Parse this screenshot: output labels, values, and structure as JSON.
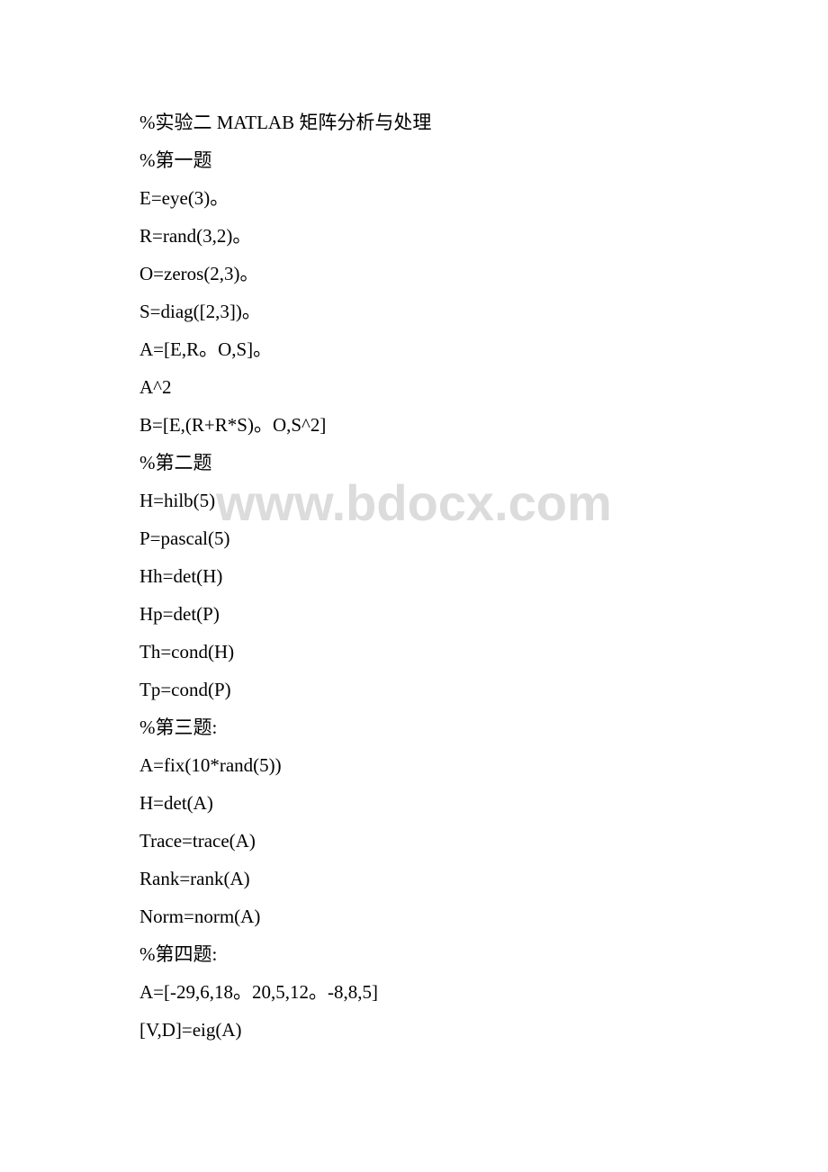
{
  "watermark": "www.bdocx.com",
  "lines": [
    "%实验二 MATLAB 矩阵分析与处理",
    "%第一题",
    "E=eye(3)。",
    "R=rand(3,2)。",
    "O=zeros(2,3)。",
    "S=diag([2,3])。",
    "A=[E,R。O,S]。",
    "A^2",
    "B=[E,(R+R*S)。O,S^2]",
    "%第二题",
    "H=hilb(5)",
    "P=pascal(5)",
    "Hh=det(H)",
    "Hp=det(P)",
    "Th=cond(H)",
    "Tp=cond(P)",
    "%第三题:",
    "A=fix(10*rand(5))",
    "H=det(A)",
    "Trace=trace(A)",
    "Rank=rank(A)",
    "Norm=norm(A)",
    "%第四题:",
    "A=[-29,6,18。20,5,12。-8,8,5]",
    "[V,D]=eig(A)"
  ]
}
